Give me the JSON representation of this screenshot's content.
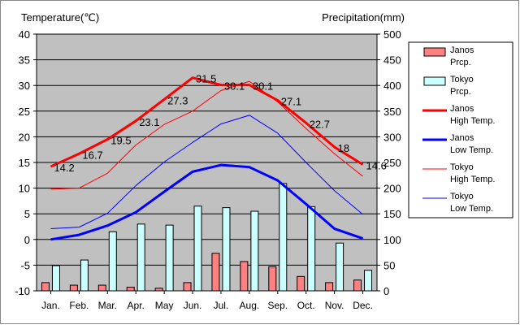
{
  "chart_data": {
    "type": "bar",
    "left_axis_title": "Temperature(℃)",
    "right_axis_title": "Precipitation(mm)",
    "categories": [
      "Jan.",
      "Feb.",
      "Mar.",
      "Apr.",
      "May",
      "Jun.",
      "Jul.",
      "Aug.",
      "Sep.",
      "Oct.",
      "Nov.",
      "Dec."
    ],
    "left_axis": {
      "ylim": [
        -10,
        40
      ],
      "ticks": [
        "-10",
        "-5",
        "0",
        "5",
        "10",
        "15",
        "20",
        "25",
        "30",
        "35",
        "40"
      ]
    },
    "right_axis": {
      "ylim": [
        0,
        500
      ],
      "ticks": [
        "0",
        "50",
        "100",
        "150",
        "200",
        "250",
        "300",
        "350",
        "400",
        "450",
        "500"
      ]
    },
    "grid": true,
    "legend_position": "right",
    "series": [
      {
        "name": "Janos Prcp.",
        "legend_label": [
          "Janos",
          "Prcp."
        ],
        "kind": "bar",
        "axis": "right",
        "color": "#ff8080",
        "values": [
          16,
          11,
          11,
          7,
          5,
          16,
          73,
          57,
          47,
          28,
          16,
          21
        ]
      },
      {
        "name": "Tokyo Prcp.",
        "legend_label": [
          "Tokyo",
          "Prcp."
        ],
        "kind": "bar",
        "axis": "right",
        "color": "#ccffff",
        "values": [
          49,
          60,
          115,
          130,
          128,
          165,
          162,
          155,
          209,
          164,
          93,
          40
        ]
      },
      {
        "name": "Janos High Temp.",
        "legend_label": [
          "Janos",
          "High Temp."
        ],
        "kind": "line",
        "axis": "left",
        "color": "#ff0000",
        "width": 3,
        "values": [
          14.2,
          16.7,
          19.5,
          23.1,
          27.3,
          31.5,
          30.1,
          30.1,
          27.1,
          22.7,
          18,
          14.6
        ],
        "value_labels": [
          "14.2",
          "16.7",
          "19.5",
          "23.1",
          "27.3",
          "31.5",
          "30.1",
          "30.1",
          "27.1",
          "22.7",
          "18",
          "14.6"
        ]
      },
      {
        "name": "Janos Low Temp.",
        "legend_label": [
          "Janos",
          "Low Temp."
        ],
        "kind": "line",
        "axis": "left",
        "color": "#0000ff",
        "width": 3,
        "values": [
          0,
          0.9,
          2.7,
          5.3,
          9.3,
          13.2,
          14.5,
          14.1,
          11.5,
          6.9,
          2.1,
          0.2
        ]
      },
      {
        "name": "Tokyo High Temp.",
        "legend_label": [
          "Tokyo",
          "High Temp."
        ],
        "kind": "line",
        "axis": "left",
        "color": "#ff0000",
        "width": 1,
        "values": [
          9.8,
          10.0,
          12.9,
          18.4,
          22.4,
          25.0,
          29.0,
          30.8,
          26.8,
          21.6,
          16.7,
          12.3
        ]
      },
      {
        "name": "Tokyo Low Temp.",
        "legend_label": [
          "Tokyo",
          "Low Temp."
        ],
        "kind": "line",
        "axis": "left",
        "color": "#0000ff",
        "width": 1,
        "values": [
          2.1,
          2.4,
          5.1,
          10.5,
          15.1,
          18.9,
          22.5,
          24.2,
          20.7,
          15.0,
          9.5,
          4.9
        ]
      }
    ]
  }
}
